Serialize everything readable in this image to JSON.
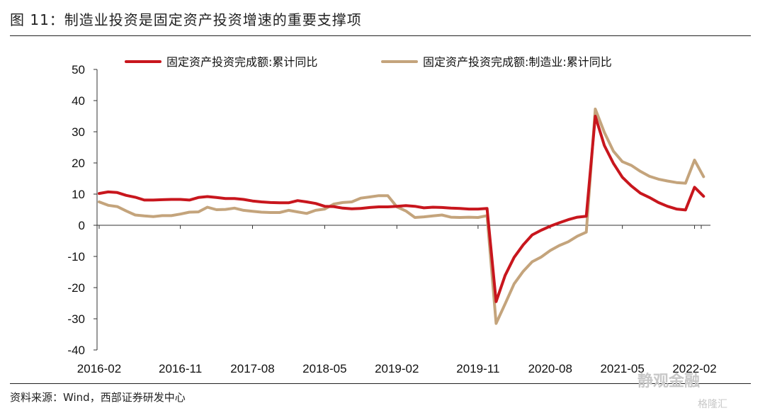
{
  "figure": {
    "title": "图 11：制造业投资是固定资产投资增速的重要支撑项",
    "source": "资料来源：Wind，西部证券研发中心"
  },
  "watermark": {
    "text1": "静观金融",
    "text2": "格隆汇"
  },
  "chart_data": {
    "type": "line",
    "x_tick_labels": [
      "2016-02",
      "2016-11",
      "2017-08",
      "2018-05",
      "2019-02",
      "2019-11",
      "2020-08",
      "2021-05",
      "2022-02"
    ],
    "x": [
      "2016-02",
      "2016-03",
      "2016-04",
      "2016-05",
      "2016-06",
      "2016-07",
      "2016-08",
      "2016-09",
      "2016-10",
      "2016-11",
      "2016-12",
      "2017-02",
      "2017-03",
      "2017-04",
      "2017-05",
      "2017-06",
      "2017-07",
      "2017-08",
      "2017-09",
      "2017-10",
      "2017-11",
      "2017-12",
      "2018-02",
      "2018-03",
      "2018-04",
      "2018-05",
      "2018-06",
      "2018-07",
      "2018-08",
      "2018-09",
      "2018-10",
      "2018-11",
      "2018-12",
      "2019-02",
      "2019-03",
      "2019-04",
      "2019-05",
      "2019-06",
      "2019-07",
      "2019-08",
      "2019-09",
      "2019-10",
      "2019-11",
      "2019-12",
      "2020-02",
      "2020-03",
      "2020-04",
      "2020-05",
      "2020-06",
      "2020-07",
      "2020-08",
      "2020-09",
      "2020-10",
      "2020-11",
      "2020-12",
      "2021-02",
      "2021-03",
      "2021-04",
      "2021-05",
      "2021-06",
      "2021-07",
      "2021-08",
      "2021-09",
      "2021-10",
      "2021-11",
      "2021-12",
      "2022-02",
      "2022-03"
    ],
    "series": [
      {
        "name": "固定资产投资完成额:累计同比",
        "color": "#c8161d",
        "values": [
          10.2,
          10.7,
          10.5,
          9.6,
          9.0,
          8.1,
          8.1,
          8.2,
          8.3,
          8.3,
          8.1,
          8.9,
          9.2,
          8.9,
          8.6,
          8.6,
          8.3,
          7.8,
          7.5,
          7.3,
          7.2,
          7.2,
          7.9,
          7.5,
          7.0,
          6.1,
          6.0,
          5.5,
          5.3,
          5.4,
          5.7,
          5.9,
          5.9,
          6.1,
          6.3,
          6.1,
          5.6,
          5.8,
          5.7,
          5.5,
          5.4,
          5.2,
          5.2,
          5.4,
          -24.5,
          -16.1,
          -10.3,
          -6.3,
          -3.1,
          -1.6,
          -0.3,
          0.8,
          1.8,
          2.6,
          2.9,
          35.0,
          25.6,
          19.9,
          15.4,
          12.6,
          10.3,
          8.9,
          7.3,
          6.1,
          5.2,
          4.9,
          12.2,
          9.3
        ]
      },
      {
        "name": "固定资产投资完成额:制造业:累计同比",
        "color": "#c4a47c",
        "values": [
          7.5,
          6.4,
          6.0,
          4.6,
          3.3,
          3.0,
          2.8,
          3.1,
          3.1,
          3.6,
          4.2,
          4.3,
          5.8,
          5.0,
          5.1,
          5.5,
          4.8,
          4.5,
          4.2,
          4.1,
          4.1,
          4.8,
          4.3,
          3.8,
          4.8,
          5.2,
          6.8,
          7.3,
          7.5,
          8.7,
          9.1,
          9.5,
          9.5,
          5.9,
          4.6,
          2.5,
          2.7,
          3.0,
          3.3,
          2.6,
          2.5,
          2.6,
          2.5,
          3.1,
          -31.5,
          -25.2,
          -18.8,
          -14.8,
          -11.7,
          -10.2,
          -8.1,
          -6.5,
          -5.3,
          -3.5,
          -2.2,
          37.3,
          29.8,
          23.8,
          20.4,
          19.2,
          17.3,
          15.7,
          14.8,
          14.2,
          13.7,
          13.5,
          20.9,
          15.6
        ]
      }
    ],
    "ylim": [
      -40,
      50
    ],
    "yticks": [
      -40,
      -30,
      -20,
      -10,
      0,
      10,
      20,
      30,
      40,
      50
    ],
    "legend_position": "top",
    "grid": false
  }
}
